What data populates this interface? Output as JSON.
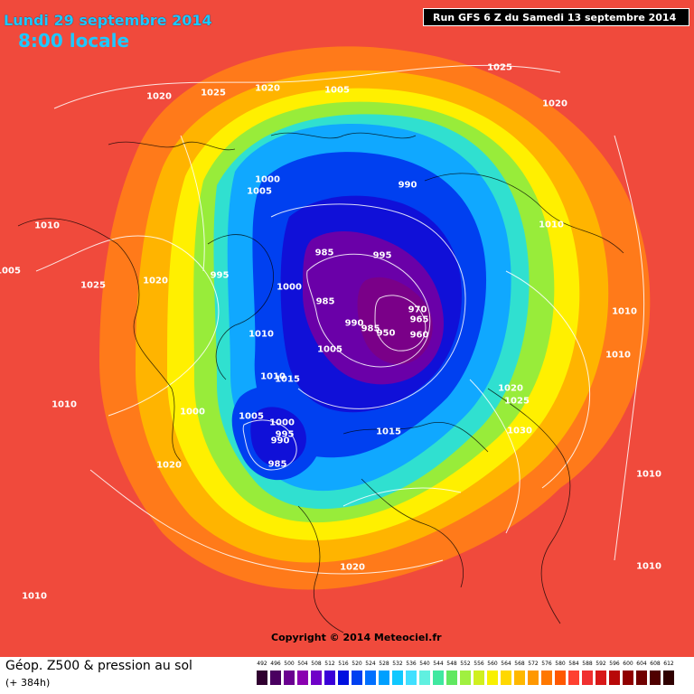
{
  "header": {
    "date": "Lundi 29 septembre 2014",
    "time": "8:00 locale",
    "run": "Run GFS 6 Z du Samedi 13 septembre 2014"
  },
  "copyright": "Copyright © 2014 Meteociel.fr",
  "footer": {
    "title": "Géop. Z500 & pression au sol",
    "subtitle": "(+ 384h)"
  },
  "legend": {
    "ticks": [
      "492",
      "496",
      "500",
      "504",
      "508",
      "512",
      "516",
      "520",
      "524",
      "528",
      "532",
      "536",
      "540",
      "544",
      "548",
      "552",
      "556",
      "560",
      "564",
      "568",
      "572",
      "576",
      "580",
      "584",
      "588",
      "592",
      "596",
      "600",
      "604",
      "608",
      "612"
    ],
    "colors": [
      "#300030",
      "#4a0060",
      "#6a0090",
      "#8a00b0",
      "#7000c8",
      "#3a00d8",
      "#0010e0",
      "#0040f0",
      "#0070ff",
      "#00a0ff",
      "#10c8ff",
      "#40e0ff",
      "#60f0e0",
      "#40e8a0",
      "#60e860",
      "#a0f040",
      "#d0f020",
      "#f8f000",
      "#ffd800",
      "#ffb800",
      "#ff9800",
      "#ff7800",
      "#ff5800",
      "#ff4030",
      "#f03030",
      "#d81818",
      "#b80808",
      "#900000",
      "#700000",
      "#500000",
      "#300000"
    ]
  },
  "pressure_labels": [
    "1020",
    "1025",
    "1020",
    "1005",
    "1025",
    "1020",
    "1000",
    "1005",
    "990",
    "1010",
    "1010",
    "1025",
    "985",
    "995",
    "995",
    "1000",
    "1020",
    "1005",
    "985",
    "970",
    "965",
    "990",
    "985",
    "950",
    "960",
    "1010",
    "1005",
    "1010",
    "1010",
    "1015",
    "1010",
    "1020",
    "1025",
    "1010",
    "1000",
    "1005",
    "1000",
    "995",
    "990",
    "1015",
    "1030",
    "1020",
    "985",
    "1010",
    "1010",
    "1020",
    "1010"
  ],
  "map_colors": {
    "outer": "#f04a3c",
    "ring1": "#ff7a1a",
    "ring2": "#ffb400",
    "ring3": "#fff000",
    "ring4": "#98ec3a",
    "ring5": "#30e0d0",
    "ring6": "#10a8ff",
    "ring7": "#0040f0",
    "ring8": "#1010d8",
    "core1": "#6a00a8",
    "core2": "#7a0088"
  }
}
